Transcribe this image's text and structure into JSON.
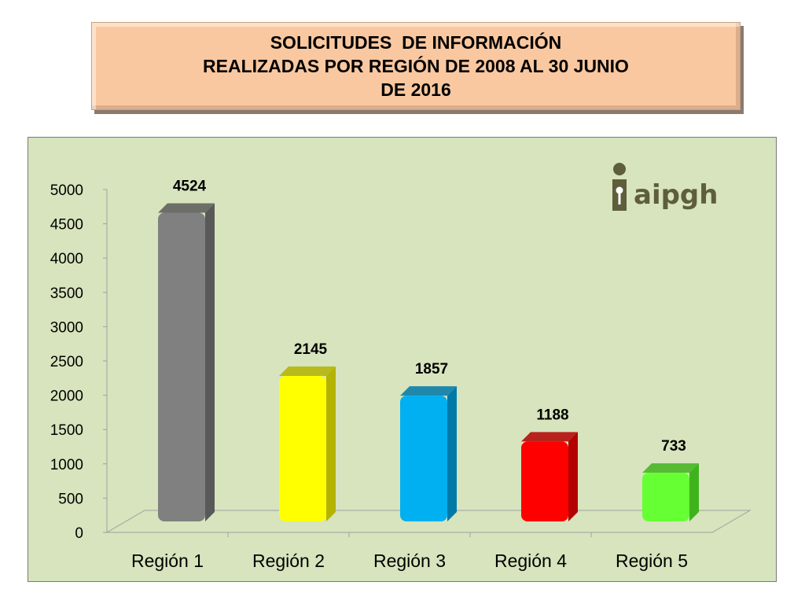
{
  "title": {
    "lines": [
      "SOLICITUDES  DE INFORMACIÓN",
      "REALIZADAS POR REGIÓN DE 2008 AL 30 JUNIO",
      "DE 2016"
    ]
  },
  "logo": {
    "text": "aipgh",
    "icon": "info-person-icon"
  },
  "chart_data": {
    "type": "bar",
    "categories": [
      "Región 1",
      "Región 2",
      "Región 3",
      "Región 4",
      "Región 5"
    ],
    "values": [
      4524,
      2145,
      1857,
      1188,
      733
    ],
    "data_labels": [
      "4524",
      "2145",
      "1857",
      "1188",
      "733"
    ],
    "y_ticks": [
      "0",
      "500",
      "1000",
      "1500",
      "2000",
      "2500",
      "3000",
      "3500",
      "4000",
      "4500",
      "5000"
    ],
    "ylim": [
      0,
      5000
    ],
    "grid": false,
    "legend": "none",
    "style": "3d-column",
    "colors": [
      "#808080",
      "#ffff00",
      "#00b0f0",
      "#ff0000",
      "#66ff33"
    ],
    "side_colors": [
      "#595959",
      "#b3b300",
      "#0079a8",
      "#b30000",
      "#3fb31c"
    ]
  }
}
